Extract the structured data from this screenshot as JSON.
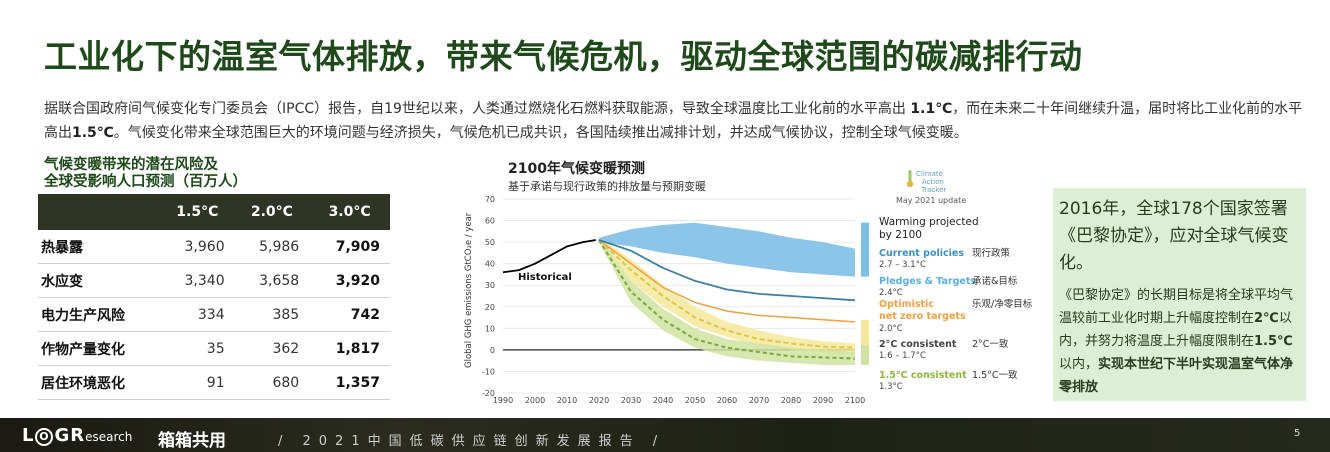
{
  "title": "工业化下的温室气体排放，带来气候危机，驱动全球范围的碳减排行动",
  "intro": {
    "p1": "据联合国政府间气候变化专门委员会（IPCC）报告，自19世纪以来，人类通过燃烧化石燃料获取能源，导致全球温度比工业化前的水平高出 ",
    "p1_bold": "1.1℃",
    "p2": "，而在未来二十年间继续升温，届时将比工业化前的水平高出",
    "p2_bold": "1.5℃",
    "p3": "。气候变化带来全球范围巨大的环境问题与经济损失，气候危机已成共识，各国陆续推出减排计划，并达成气候协议，控制全球气候变暖。"
  },
  "risk_table": {
    "heading_line1": "气候变暖带来的潜在风险及",
    "heading_line2": "全球受影响人口预测（百万人）",
    "columns": [
      "",
      "1.5°C",
      "2.0°C",
      "3.0°C"
    ],
    "rows": [
      {
        "label": "热暴露",
        "v15": "3,960",
        "v20": "5,986",
        "v30": "7,909"
      },
      {
        "label": "水应变",
        "v15": "3,340",
        "v20": "3,658",
        "v30": "3,920"
      },
      {
        "label": "电力生产风险",
        "v15": "334",
        "v20": "385",
        "v30": "742"
      },
      {
        "label": "作物产量变化",
        "v15": "35",
        "v20": "362",
        "v30": "1,817"
      },
      {
        "label": "居住环境恶化",
        "v15": "91",
        "v20": "680",
        "v30": "1,357"
      }
    ]
  },
  "chart": {
    "title": "2100年气候变暖预测",
    "subtitle": "基于承诺与现行政策的排放量与预期变暖",
    "source_logo_l1": "Climate",
    "source_logo_l2": "Action",
    "source_logo_l3": "Tracker",
    "source_date": "May 2021 update",
    "warming_title_l1": "Warming projected",
    "warming_title_l2": "by 2100",
    "ylabel": "Global GHG emissions  GtCO₂e / year",
    "historical_label": "Historical",
    "scenarios": [
      {
        "name": "Current policies",
        "range": "2.7 – 3.1°C",
        "cn": "现行政策",
        "color": "#3a8fc4"
      },
      {
        "name": "Pledges & Targets",
        "range": "2.4°C",
        "cn": "承诺&目标",
        "color": "#5aaee0"
      },
      {
        "name": "Optimistic",
        "name2": "net zero targets",
        "range": "2.0°C",
        "cn": "乐观/净零目标",
        "color": "#f0a040"
      },
      {
        "name": "2°C consistent",
        "range": "1.6 – 1.7°C",
        "cn": "2°C一致",
        "color": "#555555"
      },
      {
        "name": "1.5°C consistent",
        "range": "1.3°C",
        "cn": "1.5°C一致",
        "color": "#8cb83a"
      }
    ]
  },
  "chart_data": {
    "type": "line",
    "title": "2100年气候变暖预测",
    "ylabel": "Global GHG emissions  GtCO₂e / year",
    "xlim": [
      1990,
      2100
    ],
    "ylim": [
      -20,
      70
    ],
    "x_ticks": [
      1990,
      2000,
      2010,
      2020,
      2030,
      2040,
      2050,
      2060,
      2070,
      2080,
      2090,
      2100
    ],
    "y_ticks": [
      -20,
      -10,
      0,
      10,
      20,
      30,
      40,
      50,
      60,
      70
    ],
    "historical": {
      "x": [
        1990,
        1995,
        2000,
        2005,
        2010,
        2015,
        2019
      ],
      "y": [
        36,
        37,
        40,
        44,
        48,
        50,
        51
      ]
    },
    "series": [
      {
        "name": "Current policies",
        "band": true,
        "x": [
          2020,
          2030,
          2040,
          2050,
          2060,
          2070,
          2080,
          2090,
          2100
        ],
        "low": [
          50,
          48,
          45,
          43,
          40,
          38,
          36,
          35,
          34
        ],
        "high": [
          52,
          56,
          58,
          59,
          57,
          55,
          52,
          50,
          47
        ]
      },
      {
        "name": "Pledges & Targets",
        "x": [
          2020,
          2030,
          2040,
          2050,
          2060,
          2070,
          2080,
          2090,
          2100
        ],
        "y": [
          51,
          46,
          38,
          32,
          28,
          26,
          25,
          24,
          23
        ]
      },
      {
        "name": "Optimistic net zero targets",
        "x": [
          2020,
          2030,
          2040,
          2050,
          2060,
          2070,
          2080,
          2090,
          2100
        ],
        "y": [
          51,
          40,
          29,
          22,
          18,
          16,
          15,
          14,
          13
        ]
      },
      {
        "name": "2°C consistent",
        "band": true,
        "x": [
          2020,
          2030,
          2040,
          2050,
          2060,
          2070,
          2080,
          2090,
          2100
        ],
        "y": [
          51,
          37,
          25,
          15,
          9,
          5,
          3,
          1.5,
          1
        ],
        "low": [
          51,
          32,
          20,
          11,
          6,
          2,
          0,
          -1,
          -2
        ],
        "high": [
          52,
          42,
          30,
          20,
          13,
          9,
          6,
          4,
          3
        ]
      },
      {
        "name": "1.5°C consistent",
        "band": true,
        "x": [
          2020,
          2030,
          2040,
          2050,
          2060,
          2070,
          2080,
          2090,
          2100
        ],
        "y": [
          51,
          27,
          14,
          5,
          1,
          -1,
          -3,
          -3.5,
          -4
        ],
        "low": [
          50,
          22,
          9,
          1,
          -3,
          -5,
          -6,
          -7,
          -7
        ],
        "high": [
          52,
          32,
          19,
          10,
          5,
          3,
          1,
          0,
          -1
        ]
      }
    ],
    "colors": {
      "current": "#7fbfe6",
      "pledges": "#3d7fa8",
      "optimistic": "#f0a040",
      "two_deg": "#c9c45a",
      "one_five": "#8cb83a",
      "historical": "#000000"
    }
  },
  "green_box": {
    "big": "2016年，全球178个国家签署《巴黎协定》，应对全球气候变化。",
    "small_p1": "《巴黎协定》的长期目标是将全球平均气温较前工业化时期上升幅度控制在",
    "small_b1": "2℃",
    "small_p2": "以内，并努力将温度上升幅度限制在",
    "small_b2": "1.5℃",
    "small_p3": "以内，",
    "small_b3": "实现本世纪下半叶实现温室气体净零排放"
  },
  "footer": {
    "logo_text": "L",
    "logo_o": "O",
    "logo_gr": "GR",
    "logo_research": "esearch",
    "logo_cn": "箱箱共用",
    "report": "/  2021中国低碳供应链创新发展报告  /",
    "page": "5"
  }
}
